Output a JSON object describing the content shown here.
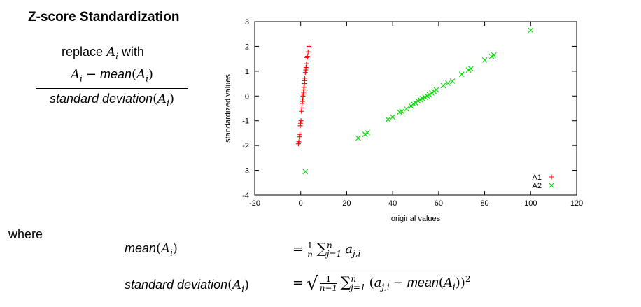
{
  "title": "Z-score Standardization",
  "formula": {
    "replace_word": "replace",
    "with_word": "with",
    "var": "A",
    "sub_i": "i",
    "minus": "−",
    "mean": "mean",
    "std_dev": "standard deviation",
    "lparen": "(",
    "rparen": ")"
  },
  "where_label": "where",
  "definitions": {
    "eq": "=",
    "one": "1",
    "n": "n",
    "n_minus_1": "n−1",
    "sum": "∑",
    "j_eq_1": "j=1",
    "a": "a",
    "ji": "j,i",
    "sq": "2",
    "radical": "√"
  },
  "chart_data": {
    "type": "scatter",
    "title": "",
    "xlabel": "original values",
    "ylabel": "standardized values",
    "xlim": [
      -20,
      120
    ],
    "ylim": [
      -4,
      3
    ],
    "xticks": [
      "-20",
      "0",
      "20",
      "40",
      "60",
      "80",
      "100",
      "120"
    ],
    "yticks": [
      "-4",
      "-3",
      "-2",
      "-1",
      "0",
      "1",
      "2",
      "3"
    ],
    "legend_position": "bottom-right",
    "grid": false,
    "series": [
      {
        "name": "A1",
        "color": "#ff0000",
        "marker": "plus",
        "points": [
          [
            -1.0,
            -1.93
          ],
          [
            -0.8,
            -1.85
          ],
          [
            -0.6,
            -1.65
          ],
          [
            -0.4,
            -1.55
          ],
          [
            -0.2,
            -1.2
          ],
          [
            -0.1,
            -1.1
          ],
          [
            0.1,
            -1.0
          ],
          [
            0.3,
            -0.62
          ],
          [
            0.5,
            -0.48
          ],
          [
            0.6,
            -0.3
          ],
          [
            0.8,
            -0.22
          ],
          [
            0.9,
            -0.12
          ],
          [
            1.0,
            0.0
          ],
          [
            1.1,
            0.08
          ],
          [
            1.2,
            0.15
          ],
          [
            1.3,
            0.25
          ],
          [
            1.4,
            0.35
          ],
          [
            1.6,
            0.5
          ],
          [
            1.7,
            0.62
          ],
          [
            1.8,
            0.72
          ],
          [
            2.0,
            0.95
          ],
          [
            2.2,
            1.05
          ],
          [
            2.3,
            1.15
          ],
          [
            2.5,
            1.3
          ],
          [
            2.7,
            1.55
          ],
          [
            2.9,
            1.6
          ],
          [
            3.2,
            1.78
          ],
          [
            3.6,
            2.0
          ]
        ]
      },
      {
        "name": "A2",
        "color": "#00dd00",
        "marker": "x",
        "points": [
          [
            2.0,
            -3.05
          ],
          [
            25.0,
            -1.7
          ],
          [
            28.0,
            -1.55
          ],
          [
            29.0,
            -1.48
          ],
          [
            38.0,
            -0.95
          ],
          [
            40.0,
            -0.85
          ],
          [
            43.0,
            -0.65
          ],
          [
            44.0,
            -0.62
          ],
          [
            46.0,
            -0.52
          ],
          [
            48.0,
            -0.4
          ],
          [
            49.0,
            -0.32
          ],
          [
            50.0,
            -0.28
          ],
          [
            51.0,
            -0.2
          ],
          [
            52.0,
            -0.15
          ],
          [
            53.0,
            -0.1
          ],
          [
            54.0,
            -0.05
          ],
          [
            55.0,
            0.0
          ],
          [
            56.0,
            0.05
          ],
          [
            57.0,
            0.12
          ],
          [
            58.0,
            0.18
          ],
          [
            59.0,
            0.25
          ],
          [
            62.0,
            0.42
          ],
          [
            64.0,
            0.52
          ],
          [
            66.0,
            0.6
          ],
          [
            70.0,
            0.88
          ],
          [
            73.0,
            1.05
          ],
          [
            74.0,
            1.1
          ],
          [
            80.0,
            1.45
          ],
          [
            83.0,
            1.6
          ],
          [
            84.0,
            1.65
          ],
          [
            100.0,
            2.65
          ]
        ]
      }
    ]
  }
}
